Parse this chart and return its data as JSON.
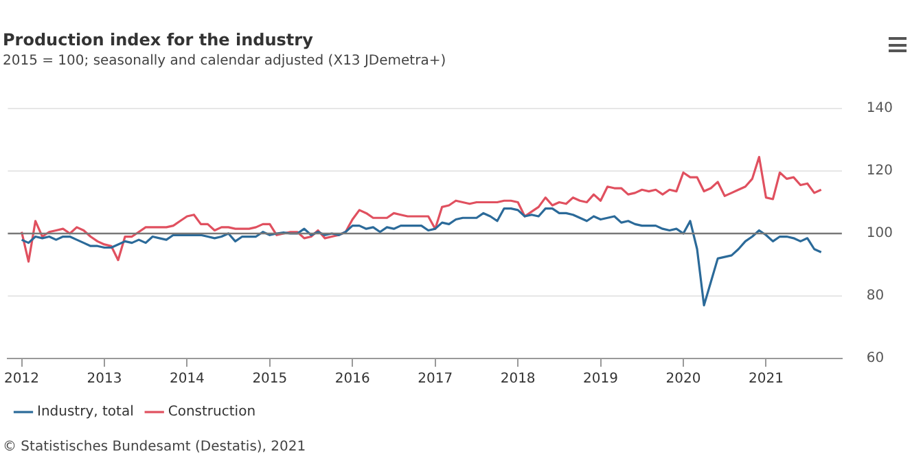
{
  "chart_data": {
    "type": "line",
    "title": "Production index for the industry",
    "subtitle": "2015 = 100; seasonally and calendar adjusted (X13 JDemetra+)",
    "x": [
      "2012-01",
      "2012-02",
      "2012-03",
      "2012-04",
      "2012-05",
      "2012-06",
      "2012-07",
      "2012-08",
      "2012-09",
      "2012-10",
      "2012-11",
      "2012-12",
      "2013-01",
      "2013-02",
      "2013-03",
      "2013-04",
      "2013-05",
      "2013-06",
      "2013-07",
      "2013-08",
      "2013-09",
      "2013-10",
      "2013-11",
      "2013-12",
      "2014-01",
      "2014-02",
      "2014-03",
      "2014-04",
      "2014-05",
      "2014-06",
      "2014-07",
      "2014-08",
      "2014-09",
      "2014-10",
      "2014-11",
      "2014-12",
      "2015-01",
      "2015-02",
      "2015-03",
      "2015-04",
      "2015-05",
      "2015-06",
      "2015-07",
      "2015-08",
      "2015-09",
      "2015-10",
      "2015-11",
      "2015-12",
      "2016-01",
      "2016-02",
      "2016-03",
      "2016-04",
      "2016-05",
      "2016-06",
      "2016-07",
      "2016-08",
      "2016-09",
      "2016-10",
      "2016-11",
      "2016-12",
      "2017-01",
      "2017-02",
      "2017-03",
      "2017-04",
      "2017-05",
      "2017-06",
      "2017-07",
      "2017-08",
      "2017-09",
      "2017-10",
      "2017-11",
      "2017-12",
      "2018-01",
      "2018-02",
      "2018-03",
      "2018-04",
      "2018-05",
      "2018-06",
      "2018-07",
      "2018-08",
      "2018-09",
      "2018-10",
      "2018-11",
      "2018-12",
      "2019-01",
      "2019-02",
      "2019-03",
      "2019-04",
      "2019-05",
      "2019-06",
      "2019-07",
      "2019-08",
      "2019-09",
      "2019-10",
      "2019-11",
      "2019-12",
      "2020-01",
      "2020-02",
      "2020-03",
      "2020-04",
      "2020-05",
      "2020-06",
      "2020-07",
      "2020-08",
      "2020-09",
      "2020-10",
      "2020-11",
      "2020-12",
      "2021-01",
      "2021-02",
      "2021-03",
      "2021-04",
      "2021-05",
      "2021-06",
      "2021-07",
      "2021-08",
      "2021-09"
    ],
    "series": [
      {
        "name": "Industry, total",
        "color": "#2b6a99",
        "values": [
          98,
          97,
          99,
          98.5,
          99,
          98,
          99,
          99,
          98,
          97,
          96,
          96,
          95.5,
          95.5,
          96.5,
          97.5,
          97,
          98,
          97,
          99,
          98.5,
          98,
          99.5,
          99.5,
          99.5,
          99.5,
          99.5,
          99,
          98.5,
          99,
          100,
          97.5,
          99,
          99,
          99,
          100.5,
          99.5,
          100,
          100.3,
          100,
          100,
          101.5,
          99.5,
          100.5,
          99.5,
          100,
          99.5,
          100.5,
          102.5,
          102.5,
          101.5,
          102,
          100.5,
          102,
          101.5,
          102.5,
          102.5,
          102.5,
          102.5,
          101,
          101.5,
          103.5,
          103,
          104.5,
          105,
          105,
          105,
          106.5,
          105.5,
          104,
          108,
          108,
          107.5,
          105.5,
          106,
          105.5,
          108,
          108,
          106.5,
          106.5,
          106,
          105,
          104,
          105.5,
          104.5,
          105,
          105.5,
          103.5,
          104,
          103,
          102.5,
          102.5,
          102.5,
          101.5,
          101,
          101.5,
          100,
          104,
          95,
          77,
          84.5,
          92,
          92.5,
          93,
          95,
          97.5,
          99,
          101,
          99.5,
          97.5,
          99,
          99,
          98.5,
          97.5,
          98.5,
          95,
          94
        ]
      },
      {
        "name": "Construction",
        "color": "#e0505f",
        "values": [
          100.5,
          91,
          104,
          99,
          100.5,
          101,
          101.5,
          100,
          102,
          101,
          99,
          97.5,
          96.5,
          96,
          91.5,
          99,
          99,
          100.5,
          102,
          102,
          102,
          102,
          102.5,
          104,
          105.5,
          106,
          103,
          103,
          101,
          102,
          102,
          101.5,
          101.5,
          101.5,
          102,
          103,
          103,
          99.5,
          100,
          100.5,
          100.5,
          98.5,
          99,
          101,
          98.5,
          99,
          99.5,
          100.5,
          104.5,
          107.5,
          106.5,
          105,
          105,
          105,
          106.5,
          106,
          105.5,
          105.5,
          105.5,
          105.5,
          101.5,
          108.5,
          109,
          110.5,
          110,
          109.5,
          110,
          110,
          110,
          110,
          110.5,
          110.5,
          110,
          105.5,
          107,
          108.5,
          111.5,
          109,
          110,
          109.5,
          111.5,
          110.5,
          110,
          112.5,
          110.5,
          115,
          114.5,
          114.5,
          112.5,
          113,
          114,
          113.5,
          114,
          112.5,
          114,
          113.5,
          119.5,
          118,
          118,
          113.5,
          114.5,
          116.5,
          112,
          113,
          114,
          115,
          117.5,
          124.5,
          111.5,
          111,
          119.5,
          117.5,
          118,
          115.5,
          116,
          113,
          114
        ]
      }
    ],
    "xlim": [
      "2011-11",
      "2021-12"
    ],
    "xticks": [
      {
        "value": "2012",
        "label": "2012"
      },
      {
        "value": "2013",
        "label": "2013"
      },
      {
        "value": "2014",
        "label": "2014"
      },
      {
        "value": "2015",
        "label": "2015"
      },
      {
        "value": "2016",
        "label": "2016"
      },
      {
        "value": "2017",
        "label": "2017"
      },
      {
        "value": "2018",
        "label": "2018"
      },
      {
        "value": "2019",
        "label": "2019"
      },
      {
        "value": "2020",
        "label": "2020"
      },
      {
        "value": "2021",
        "label": "2021"
      }
    ],
    "ylim": [
      60,
      140
    ],
    "yticks": [
      60,
      80,
      100,
      120,
      140
    ],
    "grid": "y",
    "legend": "bottom left",
    "marker": "none",
    "line_style": "solid",
    "ref_lines": [
      {
        "axis": "y",
        "value": 100,
        "color": "#777777"
      }
    ],
    "annotations": [
      "© Statistisches Bundesamt (Destatis), 2021"
    ]
  }
}
